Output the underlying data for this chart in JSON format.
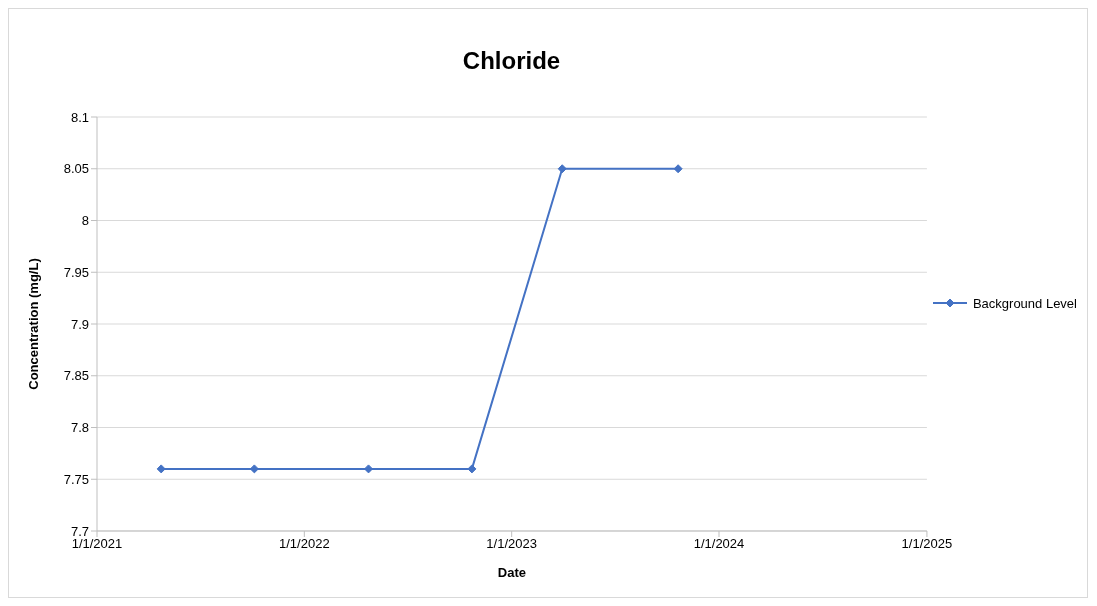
{
  "chart_data": {
    "type": "line",
    "title": "Chloride",
    "xlabel": "Date",
    "ylabel": "Concentration (mg/L)",
    "x": [
      "2021-04-24",
      "2021-10-05",
      "2022-04-24",
      "2022-10-23",
      "2023-03-31",
      "2023-10-21"
    ],
    "series": [
      {
        "name": "Background Level",
        "color": "#4472c4",
        "values": [
          7.76,
          7.76,
          7.76,
          7.76,
          8.05,
          8.05
        ]
      }
    ],
    "xlim": [
      "2021-01-01",
      "2025-01-01"
    ],
    "xticks": [
      {
        "value": "2021-01-01",
        "label": "1/1/2021"
      },
      {
        "value": "2022-01-01",
        "label": "1/1/2022"
      },
      {
        "value": "2023-01-01",
        "label": "1/1/2023"
      },
      {
        "value": "2024-01-01",
        "label": "1/1/2024"
      },
      {
        "value": "2025-01-01",
        "label": "1/1/2025"
      }
    ],
    "ylim": [
      7.7,
      8.1
    ],
    "yticks": [
      7.7,
      7.75,
      7.8,
      7.85,
      7.9,
      7.95,
      8,
      8.05,
      8.1
    ],
    "grid": "y",
    "legend": "right",
    "marker": "diamond",
    "line_style": "solid"
  }
}
